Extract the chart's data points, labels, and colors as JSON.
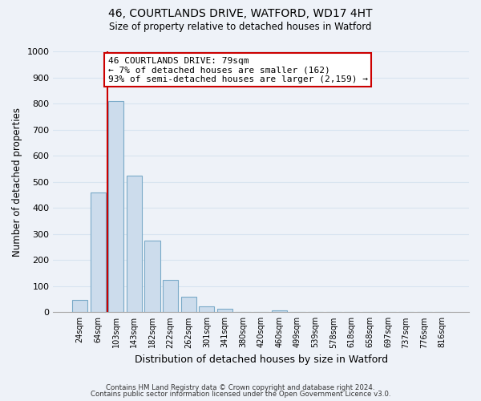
{
  "title1": "46, COURTLANDS DRIVE, WATFORD, WD17 4HT",
  "title2": "Size of property relative to detached houses in Watford",
  "xlabel": "Distribution of detached houses by size in Watford",
  "ylabel": "Number of detached properties",
  "bar_labels": [
    "24sqm",
    "64sqm",
    "103sqm",
    "143sqm",
    "182sqm",
    "222sqm",
    "262sqm",
    "301sqm",
    "341sqm",
    "380sqm",
    "420sqm",
    "460sqm",
    "499sqm",
    "539sqm",
    "578sqm",
    "618sqm",
    "658sqm",
    "697sqm",
    "737sqm",
    "776sqm",
    "816sqm"
  ],
  "bar_values": [
    47,
    460,
    810,
    525,
    275,
    125,
    58,
    22,
    12,
    0,
    0,
    8,
    0,
    0,
    0,
    0,
    0,
    0,
    0,
    0,
    0
  ],
  "bar_color": "#ccdcec",
  "bar_edge_color": "#7aaac8",
  "vline_color": "#cc0000",
  "annotation_line1": "46 COURTLANDS DRIVE: 79sqm",
  "annotation_line2": "← 7% of detached houses are smaller (162)",
  "annotation_line3": "93% of semi-detached houses are larger (2,159) →",
  "annotation_box_color": "#ffffff",
  "annotation_box_edge": "#cc0000",
  "ylim": [
    0,
    1000
  ],
  "yticks": [
    0,
    100,
    200,
    300,
    400,
    500,
    600,
    700,
    800,
    900,
    1000
  ],
  "footer1": "Contains HM Land Registry data © Crown copyright and database right 2024.",
  "footer2": "Contains public sector information licensed under the Open Government Licence v3.0.",
  "grid_color": "#d8e4f0",
  "bg_color": "#eef2f8"
}
